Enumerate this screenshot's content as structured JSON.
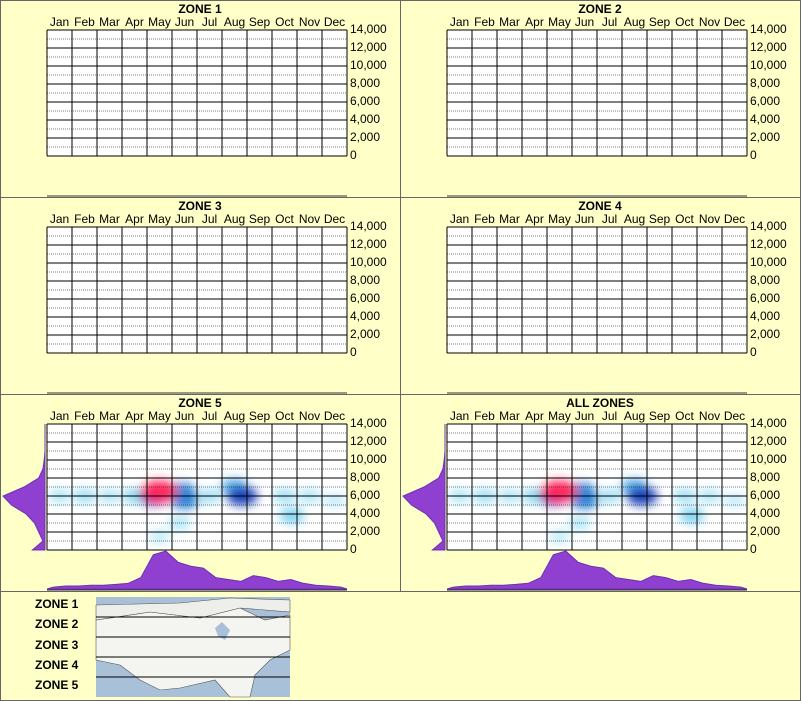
{
  "chart_data": [
    {
      "type": "heatmap",
      "title": "ZONE 1",
      "categories": [
        "Jan",
        "Feb",
        "Mar",
        "Apr",
        "May",
        "Jun",
        "Jul",
        "Aug",
        "Sep",
        "Oct",
        "Nov",
        "Dec"
      ],
      "ylim": [
        0,
        14000
      ],
      "yticks": [
        0,
        {
          "value": 2000,
          "label": "2,000"
        },
        {
          "value": 4000,
          "label": "4,000"
        },
        {
          "value": 6000,
          "label": "6,000"
        },
        {
          "value": 8000,
          "label": "8,000"
        },
        {
          "value": 10000,
          "label": "10,000"
        },
        {
          "value": 12000,
          "label": "12,000"
        },
        {
          "value": 14000,
          "label": "14,000"
        }
      ]
    },
    {
      "type": "heatmap",
      "title": "ZONE 2",
      "categories": [
        "Jan",
        "Feb",
        "Mar",
        "Apr",
        "May",
        "Jun",
        "Jul",
        "Aug",
        "Sep",
        "Oct",
        "Nov",
        "Dec"
      ],
      "ylim": [
        0,
        14000
      ],
      "yticks": [
        0,
        {
          "value": 2000,
          "label": "2,000"
        },
        {
          "value": 4000,
          "label": "4,000"
        },
        {
          "value": 6000,
          "label": "6,000"
        },
        {
          "value": 8000,
          "label": "8,000"
        },
        {
          "value": 10000,
          "label": "10,000"
        },
        {
          "value": 12000,
          "label": "12,000"
        },
        {
          "value": 14000,
          "label": "14,000"
        }
      ]
    },
    {
      "type": "heatmap",
      "title": "ZONE 3",
      "categories": [
        "Jan",
        "Feb",
        "Mar",
        "Apr",
        "May",
        "Jun",
        "Jul",
        "Aug",
        "Sep",
        "Oct",
        "Nov",
        "Dec"
      ],
      "ylim": [
        0,
        14000
      ],
      "yticks": [
        0,
        {
          "value": 2000,
          "label": "2,000"
        },
        {
          "value": 4000,
          "label": "4,000"
        },
        {
          "value": 6000,
          "label": "6,000"
        },
        {
          "value": 8000,
          "label": "8,000"
        },
        {
          "value": 10000,
          "label": "10,000"
        },
        {
          "value": 12000,
          "label": "12,000"
        },
        {
          "value": 14000,
          "label": "14,000"
        }
      ]
    },
    {
      "type": "heatmap",
      "title": "ZONE 4",
      "categories": [
        "Jan",
        "Feb",
        "Mar",
        "Apr",
        "May",
        "Jun",
        "Jul",
        "Aug",
        "Sep",
        "Oct",
        "Nov",
        "Dec"
      ],
      "ylim": [
        0,
        14000
      ],
      "yticks": [
        0,
        {
          "value": 2000,
          "label": "2,000"
        },
        {
          "value": 4000,
          "label": "4,000"
        },
        {
          "value": 6000,
          "label": "6,000"
        },
        {
          "value": 8000,
          "label": "8,000"
        },
        {
          "value": 10000,
          "label": "10,000"
        },
        {
          "value": 12000,
          "label": "12,000"
        },
        {
          "value": 14000,
          "label": "14,000"
        }
      ]
    },
    {
      "type": "heatmap",
      "title": "ZONE 5",
      "categories": [
        "Jan",
        "Feb",
        "Mar",
        "Apr",
        "May",
        "Jun",
        "Jul",
        "Aug",
        "Sep",
        "Oct",
        "Nov",
        "Dec"
      ],
      "ylim": [
        0,
        14000
      ],
      "yticks": [
        0,
        {
          "value": 2000,
          "label": "2,000"
        },
        {
          "value": 4000,
          "label": "4,000"
        },
        {
          "value": 6000,
          "label": "6,000"
        },
        {
          "value": 8000,
          "label": "8,000"
        },
        {
          "value": 10000,
          "label": "10,000"
        },
        {
          "value": 12000,
          "label": "12,000"
        },
        {
          "value": 14000,
          "label": "14,000"
        }
      ],
      "points": {
        "x": [
          4.5,
          11.5,
          0.5,
          10.5,
          2.5,
          5.3,
          1.5,
          9.5,
          6.5,
          3.5,
          9.8,
          7.5,
          5.4,
          5.5,
          4.3,
          7.8,
          4.5
        ],
        "y": [
          1500,
          5500,
          6000,
          6000,
          6000,
          3000,
          6000,
          6000,
          6000,
          6000,
          3800,
          7000,
          6500,
          5500,
          6000,
          6000,
          6500
        ],
        "weight": [
          0.1,
          0.1,
          0.15,
          0.15,
          0.15,
          0.15,
          0.2,
          0.2,
          0.2,
          0.25,
          0.3,
          0.4,
          0.5,
          0.5,
          0.7,
          0.7,
          1.0
        ]
      },
      "x_profile": [
        0.05,
        0.08,
        0.08,
        0.1,
        0.1,
        0.12,
        0.15,
        0.3,
        0.9,
        1.0,
        0.7,
        0.6,
        0.55,
        0.3,
        0.25,
        0.2,
        0.35,
        0.3,
        0.2,
        0.25,
        0.15,
        0.1,
        0.08,
        0.05
      ],
      "y_profile": [
        0.3,
        0.05,
        0.15,
        0.25,
        0.45,
        0.8,
        1.0,
        0.5,
        0.15,
        0.05,
        0.02,
        0,
        0,
        0,
        0
      ]
    },
    {
      "type": "heatmap",
      "title": "ALL ZONES",
      "categories": [
        "Jan",
        "Feb",
        "Mar",
        "Apr",
        "May",
        "Jun",
        "Jul",
        "Aug",
        "Sep",
        "Oct",
        "Nov",
        "Dec"
      ],
      "ylim": [
        0,
        14000
      ],
      "yticks": [
        0,
        {
          "value": 2000,
          "label": "2,000"
        },
        {
          "value": 4000,
          "label": "4,000"
        },
        {
          "value": 6000,
          "label": "6,000"
        },
        {
          "value": 8000,
          "label": "8,000"
        },
        {
          "value": 10000,
          "label": "10,000"
        },
        {
          "value": 12000,
          "label": "12,000"
        },
        {
          "value": 14000,
          "label": "14,000"
        }
      ],
      "points": {
        "x": [
          4.5,
          11.5,
          0.5,
          10.5,
          2.5,
          5.3,
          1.5,
          9.5,
          6.5,
          3.5,
          9.8,
          7.5,
          5.4,
          5.5,
          4.3,
          7.8,
          4.5
        ],
        "y": [
          1500,
          5500,
          6000,
          6000,
          6000,
          3000,
          6000,
          6000,
          6000,
          6000,
          3800,
          7000,
          6500,
          5500,
          6000,
          6000,
          6500
        ],
        "weight": [
          0.1,
          0.1,
          0.15,
          0.15,
          0.15,
          0.15,
          0.2,
          0.2,
          0.2,
          0.25,
          0.3,
          0.4,
          0.5,
          0.5,
          0.7,
          0.7,
          1.0
        ]
      },
      "x_profile": [
        0.05,
        0.08,
        0.08,
        0.1,
        0.1,
        0.12,
        0.15,
        0.3,
        0.9,
        1.0,
        0.7,
        0.6,
        0.55,
        0.3,
        0.25,
        0.2,
        0.35,
        0.3,
        0.2,
        0.25,
        0.15,
        0.1,
        0.08,
        0.05
      ],
      "y_profile": [
        0.3,
        0.05,
        0.15,
        0.25,
        0.45,
        0.8,
        1.0,
        0.5,
        0.15,
        0.05,
        0.02,
        0,
        0,
        0,
        0
      ]
    }
  ],
  "legend": {
    "zones": [
      "ZONE 1",
      "ZONE 2",
      "ZONE 3",
      "ZONE 4",
      "ZONE 5"
    ]
  }
}
